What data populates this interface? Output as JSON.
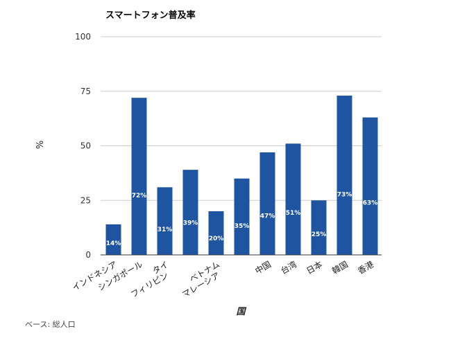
{
  "chart_data": {
    "type": "bar",
    "title": "スマートフォン普及率",
    "xlabel": "国",
    "ylabel": "%",
    "source_note": "ベース: 総人口",
    "ylim": [
      0,
      100
    ],
    "yticks": [
      0,
      25,
      50,
      75,
      100
    ],
    "grid": true,
    "bar_color": "#1f55a0",
    "categories": [
      {
        "label_lines": [
          "インドネシア"
        ],
        "value": 14,
        "data_label": "14%"
      },
      {
        "label_lines": [
          "シンガポール"
        ],
        "value": 72,
        "data_label": "72%"
      },
      {
        "label_lines": [
          "タイ",
          "フィリピン"
        ],
        "value": 31,
        "data_label": "31%"
      },
      {
        "label_lines": [],
        "value": 39,
        "data_label": "39%"
      },
      {
        "label_lines": [
          "ベトナム",
          "マレーシア"
        ],
        "value": 20,
        "data_label": "20%"
      },
      {
        "label_lines": [],
        "value": 35,
        "data_label": "35%"
      },
      {
        "label_lines": [
          "中国"
        ],
        "value": 47,
        "data_label": "47%"
      },
      {
        "label_lines": [
          "台湾"
        ],
        "value": 51,
        "data_label": "51%"
      },
      {
        "label_lines": [
          "日本"
        ],
        "value": 25,
        "data_label": "25%"
      },
      {
        "label_lines": [
          "韓国"
        ],
        "value": 73,
        "data_label": "73%"
      },
      {
        "label_lines": [
          "香港"
        ],
        "value": 63,
        "data_label": "63%"
      }
    ]
  }
}
